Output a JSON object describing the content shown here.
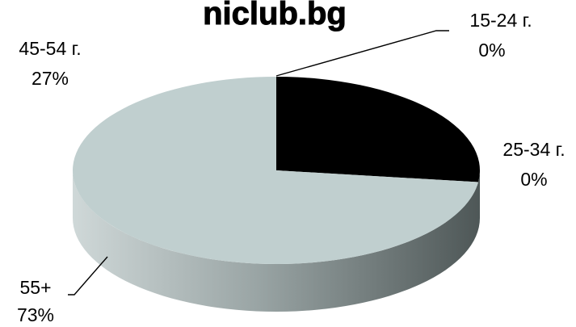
{
  "chart_data": {
    "type": "pie",
    "title": "niclub.bg",
    "is_3d": true,
    "slices": [
      {
        "name": "15-24 г.",
        "value": 0,
        "percent_label": "0%",
        "color": "#000000"
      },
      {
        "name": "25-34 г.",
        "value": 0,
        "percent_label": "0%",
        "color": "#000000"
      },
      {
        "name": "45-54 г.",
        "value": 27,
        "percent_label": "27%",
        "color": "#000000"
      },
      {
        "name": "55+",
        "value": 73,
        "percent_label": "73%",
        "color": "#c0cfcf"
      }
    ],
    "label_color": "#000000"
  }
}
